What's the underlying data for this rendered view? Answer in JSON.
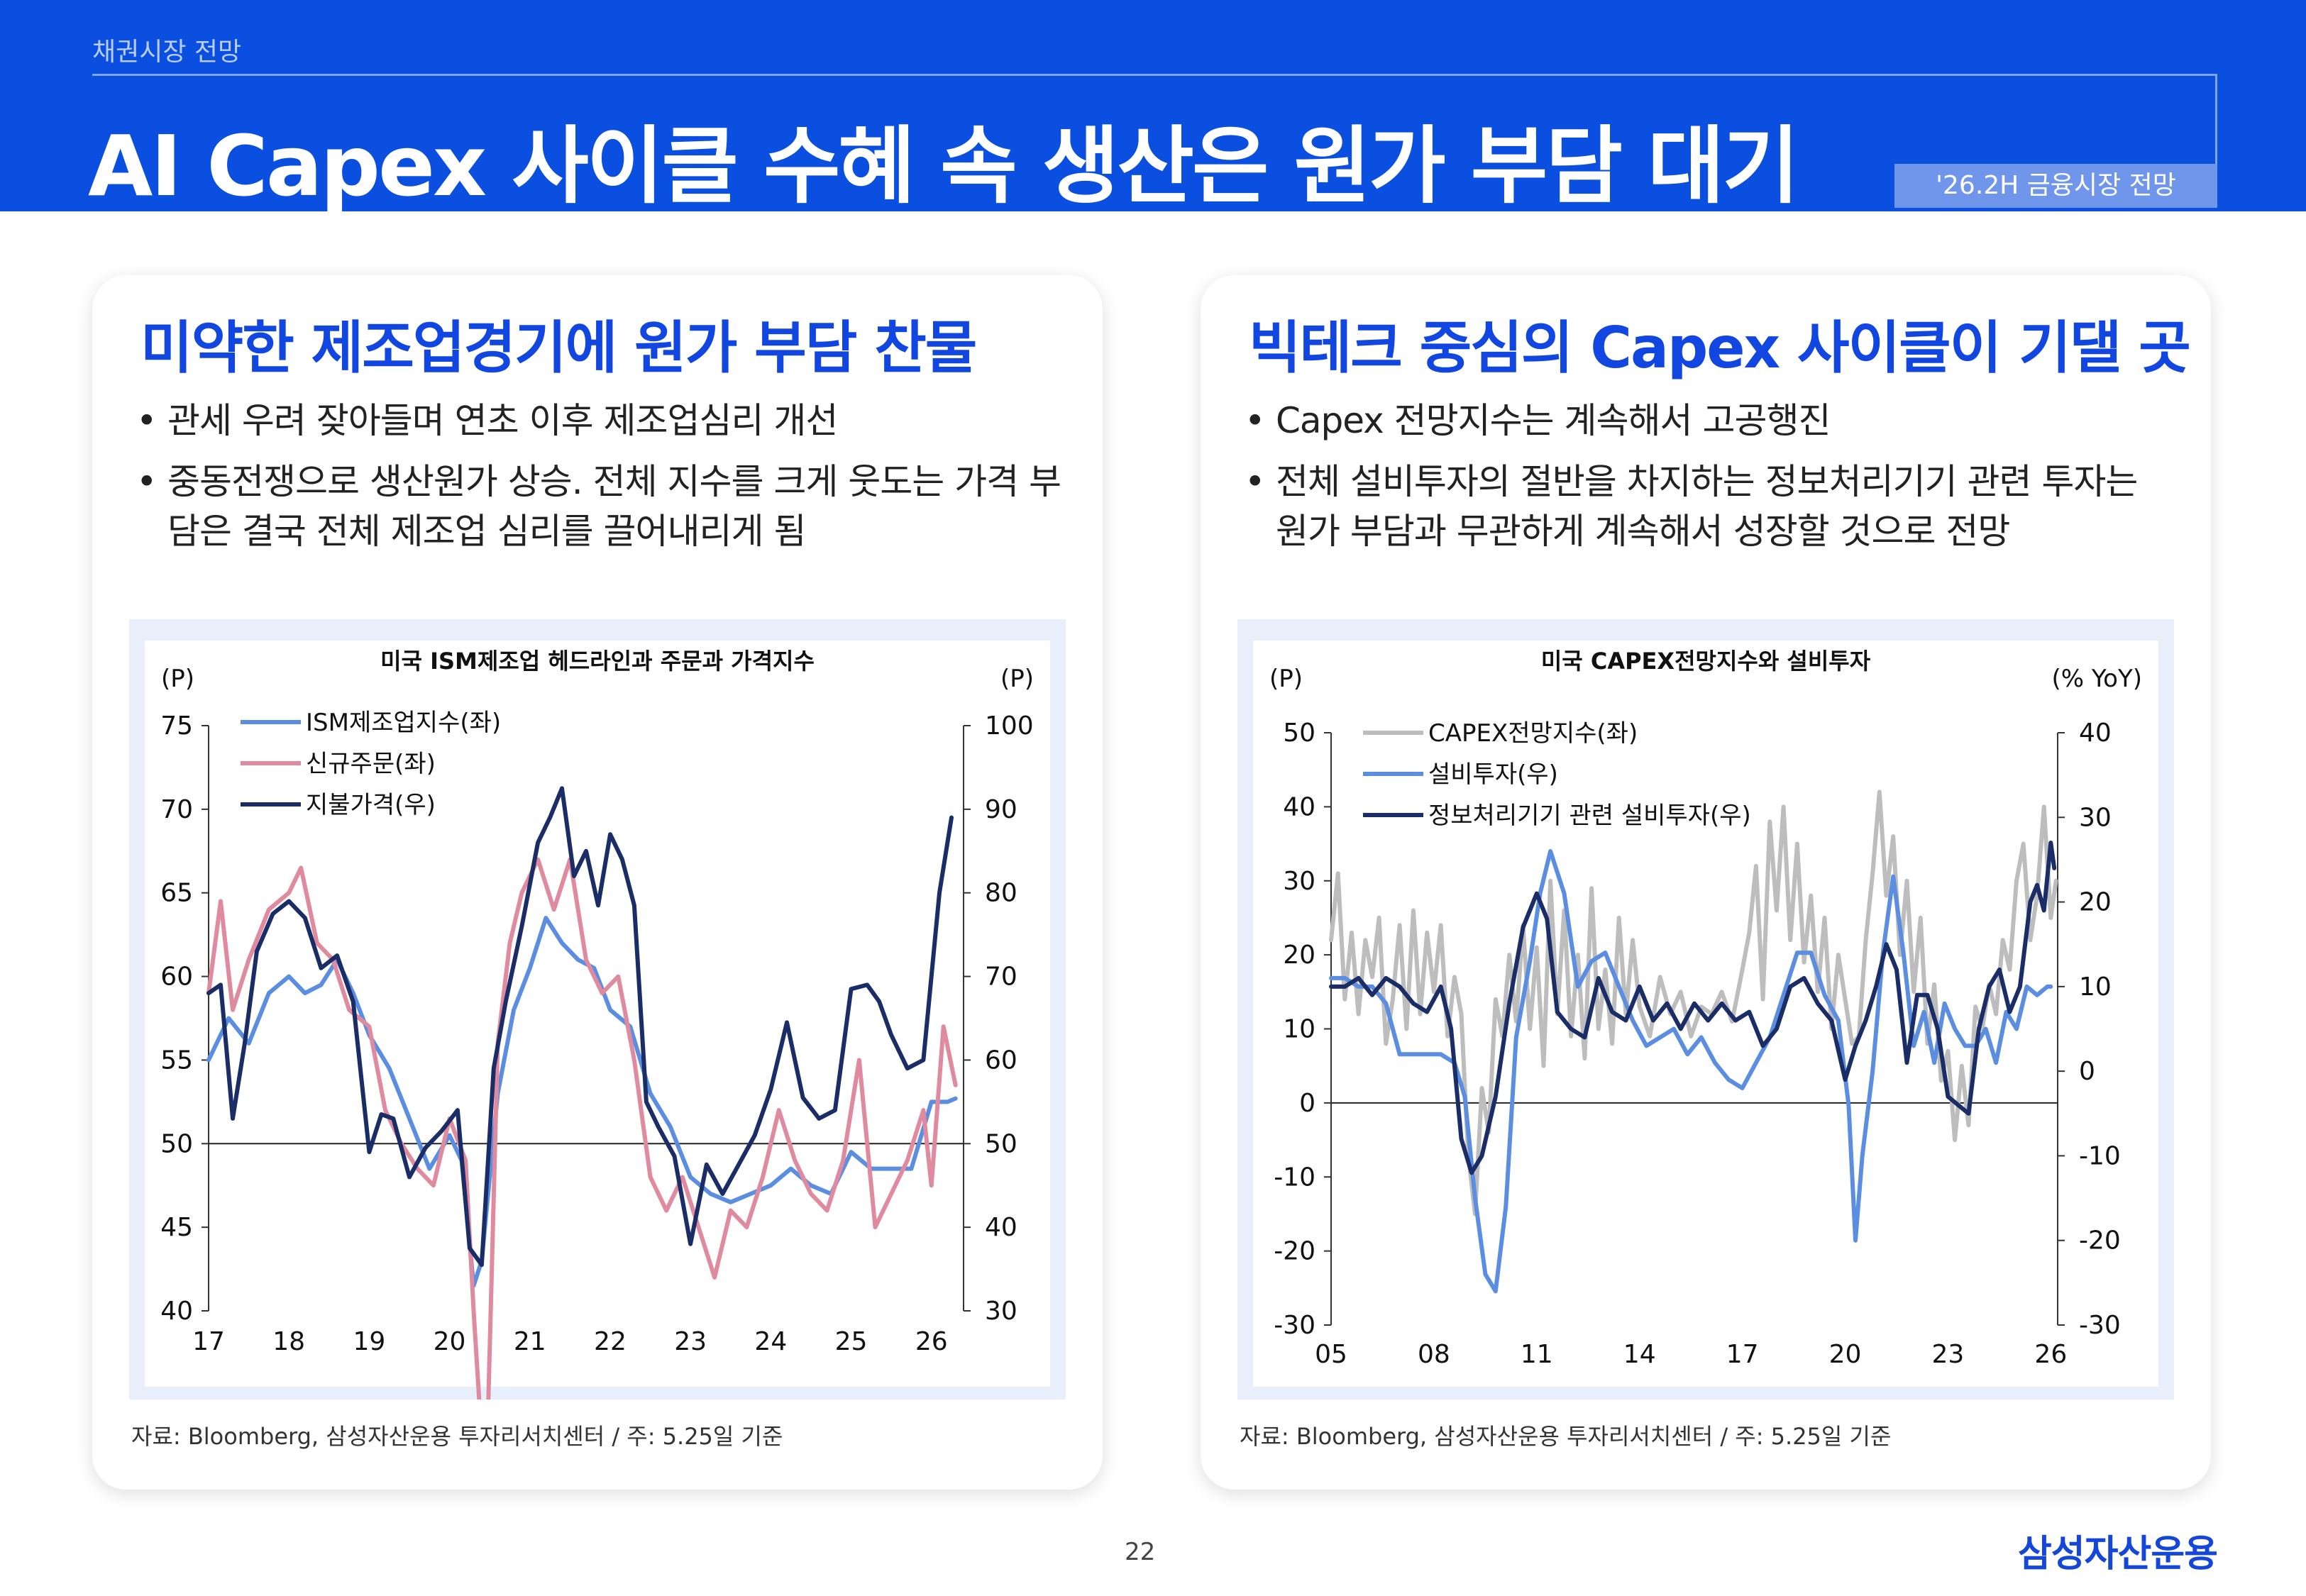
{
  "header": {
    "section": "채권시장 전망",
    "title": "AI Capex 사이클 수혜 속 생산은 원가 부담 대기",
    "tag": "'26.2H 금융시장 전망"
  },
  "left_card": {
    "heading": "미약한 제조업경기에 원가 부담 찬물",
    "bullets": [
      "관세 우려 잦아들며 연초 이후 제조업심리 개선",
      "중동전쟁으로 생산원가 상승. 전체 지수를 크게 웃도는 가격 부담은 결국 전체 제조업 심리를 끌어내리게 됨"
    ],
    "source": "자료: Bloomberg, 삼성자산운용 투자리서치센터 / 주: 5.25일 기준"
  },
  "right_card": {
    "heading": "빅테크 중심의 Capex 사이클이 기댈 곳",
    "bullets": [
      "Capex 전망지수는 계속해서 고공행진",
      "전체 설비투자의 절반을 차지하는 정보처리기기 관련 투자는 원가 부담과 무관하게 계속해서 성장할 것으로 전망"
    ],
    "source": "자료: Bloomberg, 삼성자산운용 투자리서치센터 / 주: 5.25일 기준"
  },
  "footer": {
    "page": "22",
    "logo": "삼성자산운용"
  },
  "colors": {
    "brand": "#0a4fe0",
    "ism": "#5b8ee0",
    "orders": "#e08aa0",
    "prices": "#1b2d66",
    "capex_index": "#bdbdbd",
    "capex_invest": "#5b8ee0",
    "capex_it": "#1b2d66"
  },
  "chart_data": [
    {
      "type": "line",
      "title": "미국 ISM제조업 헤드라인과 주문과 가격지수",
      "left_unit": "(P)",
      "right_unit": "(P)",
      "x_start": 2017.0,
      "x_end": 2026.4,
      "x_ticks": [
        "17",
        "18",
        "19",
        "20",
        "21",
        "22",
        "23",
        "24",
        "25",
        "26"
      ],
      "x_tick_values": [
        2017,
        2018,
        2019,
        2020,
        2021,
        2022,
        2023,
        2024,
        2025,
        2026
      ],
      "ylim_left": [
        40,
        75
      ],
      "y_ticks_left": [
        "75",
        "70",
        "65",
        "60",
        "55",
        "50",
        "45",
        "40"
      ],
      "y_tick_values_left": [
        75,
        70,
        65,
        60,
        55,
        50,
        45,
        40
      ],
      "ylim_right": [
        30,
        100
      ],
      "y_ticks_right": [
        "100",
        "90",
        "80",
        "70",
        "60",
        "50",
        "40",
        "30"
      ],
      "y_tick_values_right": [
        100,
        90,
        80,
        70,
        60,
        50,
        40,
        30
      ],
      "reference_left": 50,
      "legend_position": "top-left",
      "series": [
        {
          "name": "ISM제조업지수(좌)",
          "axis": "left",
          "color": "#5b8ee0",
          "x": [
            2017.0,
            2017.25,
            2017.5,
            2017.75,
            2018.0,
            2018.2,
            2018.4,
            2018.6,
            2018.8,
            2019.0,
            2019.25,
            2019.5,
            2019.75,
            2020.0,
            2020.15,
            2020.3,
            2020.4,
            2020.6,
            2020.8,
            2021.0,
            2021.2,
            2021.4,
            2021.6,
            2021.8,
            2022.0,
            2022.25,
            2022.5,
            2022.75,
            2023.0,
            2023.25,
            2023.5,
            2023.75,
            2024.0,
            2024.25,
            2024.5,
            2024.75,
            2025.0,
            2025.25,
            2025.5,
            2025.75,
            2026.0,
            2026.2,
            2026.3
          ],
          "y": [
            55.0,
            57.5,
            56.0,
            59.0,
            60.0,
            59.0,
            59.5,
            61.0,
            59.0,
            56.5,
            54.5,
            51.5,
            48.5,
            50.5,
            49.0,
            41.5,
            43.0,
            53.0,
            58.0,
            60.5,
            63.5,
            62.0,
            61.0,
            60.5,
            58.0,
            57.0,
            53.0,
            51.0,
            48.0,
            47.0,
            46.5,
            47.0,
            47.5,
            48.5,
            47.5,
            47.0,
            49.5,
            48.5,
            48.5,
            48.5,
            52.5,
            52.5,
            52.7
          ]
        },
        {
          "name": "신규주문(좌)",
          "axis": "left",
          "color": "#e08aa0",
          "x": [
            2017.0,
            2017.15,
            2017.3,
            2017.5,
            2017.75,
            2018.0,
            2018.15,
            2018.35,
            2018.55,
            2018.75,
            2019.0,
            2019.2,
            2019.4,
            2019.6,
            2019.8,
            2020.0,
            2020.2,
            2020.3,
            2020.45,
            2020.6,
            2020.75,
            2020.9,
            2021.1,
            2021.3,
            2021.5,
            2021.7,
            2021.9,
            2022.1,
            2022.3,
            2022.5,
            2022.7,
            2022.9,
            2023.1,
            2023.3,
            2023.5,
            2023.7,
            2023.9,
            2024.1,
            2024.3,
            2024.5,
            2024.7,
            2024.9,
            2025.1,
            2025.3,
            2025.5,
            2025.7,
            2025.9,
            2026.0,
            2026.15,
            2026.3
          ],
          "y": [
            59.0,
            64.5,
            58.0,
            61.0,
            64.0,
            65.0,
            66.5,
            62.0,
            61.0,
            58.0,
            57.0,
            52.0,
            50.0,
            48.5,
            47.5,
            51.5,
            49.0,
            40.0,
            28.5,
            56.0,
            62.0,
            65.0,
            67.0,
            64.0,
            67.0,
            61.0,
            59.0,
            60.0,
            55.0,
            48.0,
            46.0,
            48.0,
            45.0,
            42.0,
            46.0,
            45.0,
            48.0,
            52.0,
            49.0,
            47.0,
            46.0,
            49.0,
            55.0,
            45.0,
            47.0,
            49.0,
            52.0,
            47.5,
            57.0,
            53.5
          ]
        },
        {
          "name": "지불가격(우)",
          "axis": "right",
          "color": "#1b2d66",
          "x": [
            2017.0,
            2017.15,
            2017.3,
            2017.45,
            2017.6,
            2017.8,
            2018.0,
            2018.2,
            2018.4,
            2018.6,
            2018.8,
            2019.0,
            2019.15,
            2019.3,
            2019.5,
            2019.7,
            2019.9,
            2020.1,
            2020.25,
            2020.4,
            2020.55,
            2020.7,
            2020.9,
            2021.1,
            2021.25,
            2021.4,
            2021.55,
            2021.7,
            2021.85,
            2022.0,
            2022.15,
            2022.3,
            2022.45,
            2022.6,
            2022.8,
            2023.0,
            2023.2,
            2023.4,
            2023.6,
            2023.8,
            2024.0,
            2024.2,
            2024.4,
            2024.6,
            2024.8,
            2025.0,
            2025.2,
            2025.35,
            2025.5,
            2025.7,
            2025.9,
            2026.1,
            2026.25
          ],
          "y": [
            68.0,
            69.0,
            53.0,
            62.0,
            73.0,
            77.5,
            79.0,
            77.0,
            71.0,
            72.5,
            67.0,
            49.0,
            53.5,
            53.0,
            46.0,
            49.5,
            51.5,
            54.0,
            37.5,
            35.5,
            59.0,
            67.0,
            76.0,
            86.0,
            89.0,
            92.5,
            82.0,
            85.0,
            78.5,
            87.0,
            84.0,
            78.5,
            55.0,
            52.0,
            48.5,
            38.0,
            47.5,
            44.0,
            47.5,
            51.0,
            56.5,
            64.5,
            55.5,
            53.0,
            54.0,
            68.5,
            69.0,
            67.0,
            63.0,
            59.0,
            60.0,
            80.0,
            89.0
          ]
        }
      ]
    },
    {
      "type": "line",
      "title": "미국 CAPEX전망지수와 설비투자",
      "left_unit": "(P)",
      "right_unit": "(% YoY)",
      "x_start": 2005.0,
      "x_end": 2026.2,
      "x_ticks": [
        "05",
        "08",
        "11",
        "14",
        "17",
        "20",
        "23",
        "26"
      ],
      "x_tick_values": [
        2005,
        2008,
        2011,
        2014,
        2017,
        2020,
        2023,
        2026
      ],
      "ylim_left": [
        -30,
        50
      ],
      "y_ticks_left": [
        "50",
        "40",
        "30",
        "20",
        "10",
        "0",
        "-10",
        "-20",
        "-30"
      ],
      "y_tick_values_left": [
        50,
        40,
        30,
        20,
        10,
        0,
        -10,
        -20,
        -30
      ],
      "ylim_right": [
        -30,
        40
      ],
      "y_ticks_right": [
        "40",
        "30",
        "20",
        "10",
        "0",
        "-10",
        "-20",
        "-30"
      ],
      "y_tick_values_right": [
        40,
        30,
        20,
        10,
        0,
        -10,
        -20,
        -30
      ],
      "reference_left": 0,
      "legend_position": "top-left",
      "series": [
        {
          "name": "CAPEX전망지수(좌)",
          "axis": "left",
          "color": "#bdbdbd",
          "x": [
            2005.0,
            2005.2,
            2005.4,
            2005.6,
            2005.8,
            2006.0,
            2006.2,
            2006.4,
            2006.6,
            2006.8,
            2007.0,
            2007.2,
            2007.4,
            2007.6,
            2007.8,
            2008.0,
            2008.2,
            2008.4,
            2008.6,
            2008.8,
            2009.0,
            2009.2,
            2009.4,
            2009.6,
            2009.8,
            2010.0,
            2010.2,
            2010.4,
            2010.6,
            2010.8,
            2011.0,
            2011.2,
            2011.4,
            2011.6,
            2011.8,
            2012.0,
            2012.2,
            2012.4,
            2012.6,
            2012.8,
            2013.0,
            2013.2,
            2013.4,
            2013.6,
            2013.8,
            2014.0,
            2014.3,
            2014.6,
            2014.9,
            2015.2,
            2015.5,
            2015.8,
            2016.1,
            2016.4,
            2016.7,
            2017.0,
            2017.2,
            2017.4,
            2017.6,
            2017.8,
            2018.0,
            2018.2,
            2018.4,
            2018.6,
            2018.8,
            2019.0,
            2019.2,
            2019.4,
            2019.6,
            2019.8,
            2020.0,
            2020.2,
            2020.4,
            2020.6,
            2020.8,
            2021.0,
            2021.2,
            2021.4,
            2021.6,
            2021.8,
            2022.0,
            2022.2,
            2022.4,
            2022.6,
            2022.8,
            2023.0,
            2023.2,
            2023.4,
            2023.6,
            2023.8,
            2024.0,
            2024.2,
            2024.4,
            2024.6,
            2024.8,
            2025.0,
            2025.2,
            2025.4,
            2025.6,
            2025.8,
            2026.0,
            2026.15
          ],
          "y": [
            22,
            31,
            14,
            23,
            12,
            22,
            17,
            25,
            8,
            14,
            24,
            10,
            26,
            12,
            23,
            15,
            24,
            9,
            17,
            12,
            -7,
            -15,
            2,
            -4,
            14,
            9,
            20,
            11,
            24,
            10,
            21,
            5,
            30,
            12,
            26,
            9,
            20,
            6,
            29,
            10,
            18,
            8,
            25,
            12,
            22,
            13,
            9,
            17,
            12,
            15,
            9,
            13,
            12,
            15,
            11,
            18,
            23,
            32,
            14,
            38,
            26,
            40,
            22,
            35,
            19,
            28,
            15,
            25,
            10,
            20,
            14,
            8,
            9,
            22,
            31,
            42,
            28,
            36,
            20,
            30,
            15,
            25,
            8,
            16,
            3,
            7,
            -5,
            5,
            -3,
            13,
            10,
            16,
            12,
            22,
            18,
            30,
            35,
            22,
            28,
            40,
            25,
            30
          ]
        },
        {
          "name": "설비투자(우)",
          "axis": "right",
          "color": "#5b8ee0",
          "x": [
            2005.0,
            2005.4,
            2005.8,
            2006.2,
            2006.6,
            2007.0,
            2007.4,
            2007.8,
            2008.2,
            2008.6,
            2008.9,
            2009.2,
            2009.5,
            2009.8,
            2010.1,
            2010.4,
            2010.8,
            2011.1,
            2011.4,
            2011.8,
            2012.2,
            2012.6,
            2013.0,
            2013.4,
            2013.8,
            2014.2,
            2014.6,
            2015.0,
            2015.4,
            2015.8,
            2016.2,
            2016.6,
            2017.0,
            2017.4,
            2017.8,
            2018.2,
            2018.6,
            2019.0,
            2019.4,
            2019.8,
            2020.1,
            2020.3,
            2020.5,
            2020.8,
            2021.1,
            2021.4,
            2021.7,
            2022.0,
            2022.3,
            2022.6,
            2022.9,
            2023.2,
            2023.5,
            2023.8,
            2024.1,
            2024.4,
            2024.7,
            2025.0,
            2025.3,
            2025.6,
            2025.9,
            2026.0
          ],
          "y": [
            11,
            11,
            10,
            10,
            8,
            2,
            2,
            2,
            2,
            1,
            -3,
            -15,
            -24,
            -26,
            -16,
            4,
            13,
            21,
            26,
            21,
            10,
            13,
            14,
            10,
            6,
            3,
            4,
            5,
            2,
            4,
            1,
            -1,
            -2,
            1,
            4,
            9,
            14,
            14,
            9,
            6,
            -4,
            -20,
            -10,
            0,
            14,
            23,
            14,
            3,
            7,
            1,
            8,
            5,
            3,
            3,
            5,
            1,
            7,
            5,
            10,
            9,
            10,
            10
          ]
        },
        {
          "name": "정보처리기기 관련 설비투자(우)",
          "axis": "right",
          "color": "#1b2d66",
          "x": [
            2005.0,
            2005.4,
            2005.8,
            2006.2,
            2006.6,
            2007.0,
            2007.4,
            2007.8,
            2008.2,
            2008.5,
            2008.8,
            2009.1,
            2009.4,
            2009.8,
            2010.2,
            2010.6,
            2011.0,
            2011.3,
            2011.6,
            2012.0,
            2012.4,
            2012.8,
            2013.2,
            2013.6,
            2014.0,
            2014.4,
            2014.8,
            2015.2,
            2015.6,
            2016.0,
            2016.4,
            2016.8,
            2017.2,
            2017.6,
            2018.0,
            2018.4,
            2018.8,
            2019.2,
            2019.6,
            2020.0,
            2020.3,
            2020.6,
            2020.9,
            2021.2,
            2021.5,
            2021.8,
            2022.1,
            2022.4,
            2022.7,
            2023.0,
            2023.3,
            2023.6,
            2023.9,
            2024.2,
            2024.5,
            2024.8,
            2025.1,
            2025.4,
            2025.6,
            2025.8,
            2026.0,
            2026.1
          ],
          "y": [
            10,
            10,
            11,
            9,
            11,
            10,
            8,
            7,
            10,
            5,
            -8,
            -12,
            -10,
            -3,
            8,
            17,
            21,
            18,
            7,
            5,
            4,
            11,
            7,
            6,
            10,
            6,
            8,
            5,
            8,
            6,
            8,
            6,
            7,
            3,
            5,
            10,
            11,
            8,
            6,
            -1,
            3,
            6,
            10,
            15,
            12,
            1,
            9,
            9,
            5,
            -3,
            -4,
            -5,
            5,
            10,
            12,
            7,
            10,
            20,
            22,
            19,
            27,
            24
          ]
        }
      ]
    }
  ]
}
